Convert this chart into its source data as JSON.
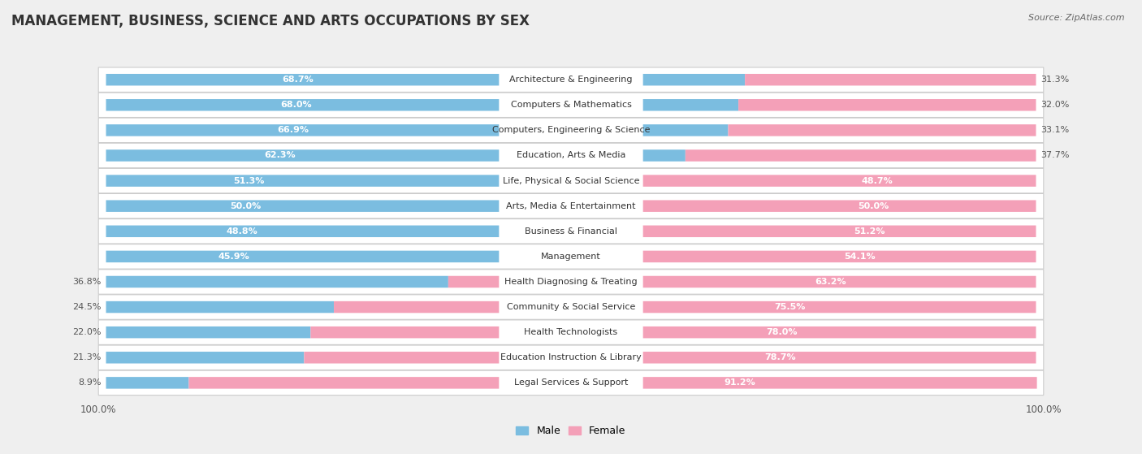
{
  "title": "MANAGEMENT, BUSINESS, SCIENCE AND ARTS OCCUPATIONS BY SEX",
  "source": "Source: ZipAtlas.com",
  "categories": [
    "Architecture & Engineering",
    "Computers & Mathematics",
    "Computers, Engineering & Science",
    "Education, Arts & Media",
    "Life, Physical & Social Science",
    "Arts, Media & Entertainment",
    "Business & Financial",
    "Management",
    "Health Diagnosing & Treating",
    "Community & Social Service",
    "Health Technologists",
    "Education Instruction & Library",
    "Legal Services & Support"
  ],
  "male_pct": [
    68.7,
    68.0,
    66.9,
    62.3,
    51.3,
    50.0,
    48.8,
    45.9,
    36.8,
    24.5,
    22.0,
    21.3,
    8.9
  ],
  "female_pct": [
    31.3,
    32.0,
    33.1,
    37.7,
    48.7,
    50.0,
    51.2,
    54.1,
    63.2,
    75.5,
    78.0,
    78.7,
    91.2
  ],
  "male_color": "#7bbde0",
  "female_color": "#f4a0b8",
  "bg_color": "#efefef",
  "row_bg_color": "#ffffff",
  "title_fontsize": 12,
  "label_fontsize": 8,
  "tick_fontsize": 8.5,
  "legend_fontsize": 9,
  "source_fontsize": 8,
  "male_threshold": 45,
  "female_threshold": 45
}
